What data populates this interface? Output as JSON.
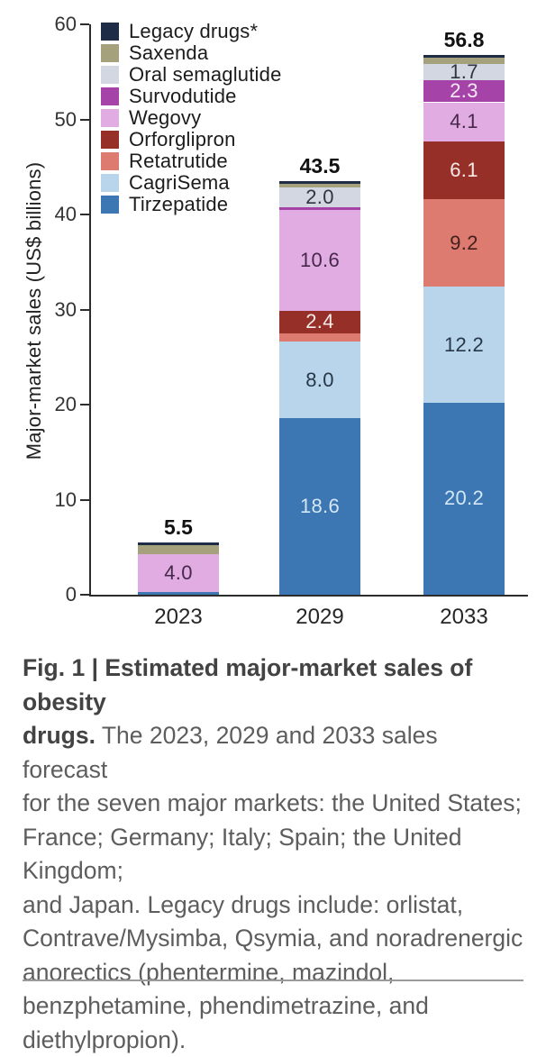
{
  "caption": {
    "line1_bold": "Fig. 1 | Estimated major-market sales of obesity",
    "line2_bold": "drugs.",
    "line2_rest": " The 2023, 2029 and 2033 sales forecast",
    "rest": "for the seven major markets: the United States;\nFrance; Germany; Italy; Spain; the United Kingdom;\nand Japan. Legacy drugs include: orlistat,\nContrave/Mysimba, Qsymia, and noradrenergic\nanorectics (phentermine, mazindol,\nbenzphetamine, phendimetrazine, and\ndiethylpropion).",
    "full_text": "Fig. 1 | Estimated major-market sales of obesity drugs. The 2023, 2029 and 2033 sales forecast for the seven major markets: the United States; France; Germany; Italy; Spain; the United Kingdom; and Japan. Legacy drugs include: orlistat, Contrave/Mysimba, Qsymia, and noradrenergic anorectics (phentermine, mazindol, benzphetamine, phendimetrazine, and diethylpropion)."
  },
  "chart_data": {
    "type": "bar",
    "stacked": true,
    "title": "",
    "xlabel": "",
    "ylabel": "Major-market sales (US$ billions)",
    "categories": [
      "2023",
      "2029",
      "2033"
    ],
    "totals": [
      "5.5",
      "43.5",
      "56.8"
    ],
    "ylim": [
      0,
      60
    ],
    "yticks": [
      0,
      10,
      20,
      30,
      40,
      50,
      60
    ],
    "grid": false,
    "legend_position": "top-left",
    "series": [
      {
        "name": "Legacy drugs*",
        "color": "#1f2c45",
        "values": [
          0.3,
          0.3,
          0.3
        ],
        "labels": [
          "",
          "",
          ""
        ],
        "label_color": "#333333"
      },
      {
        "name": "Saxenda",
        "color": "#a5a17c",
        "values": [
          0.9,
          0.4,
          0.7
        ],
        "labels": [
          "",
          "",
          ""
        ],
        "label_color": "#333333"
      },
      {
        "name": "Oral semaglutide",
        "color": "#d3d7e1",
        "values": [
          0,
          2.0,
          1.7
        ],
        "labels": [
          "",
          "2.0",
          "1.7"
        ],
        "label_color": "#33353e"
      },
      {
        "name": "Survodutide",
        "color": "#a643a9",
        "values": [
          0,
          0.3,
          2.3
        ],
        "labels": [
          "",
          "",
          "2.3"
        ],
        "label_color": "#f6ebf6"
      },
      {
        "name": "Wegovy",
        "color": "#e0ace2",
        "values": [
          4.0,
          10.6,
          4.1
        ],
        "labels": [
          "4.0",
          "10.6",
          "4.1"
        ],
        "label_color": "#47284b"
      },
      {
        "name": "Orforglipron",
        "color": "#962f28",
        "values": [
          0,
          2.4,
          6.1
        ],
        "labels": [
          "",
          "2.4",
          "6.1"
        ],
        "label_color": "#f7eae8"
      },
      {
        "name": "Retatrutide",
        "color": "#de7b70",
        "values": [
          0,
          0.9,
          9.2
        ],
        "labels": [
          "",
          "",
          "9.2"
        ],
        "label_color": "#43201d"
      },
      {
        "name": "CagriSema",
        "color": "#b8d5ec",
        "values": [
          0,
          8.0,
          12.2
        ],
        "labels": [
          "",
          "8.0",
          "12.2"
        ],
        "label_color": "#273747"
      },
      {
        "name": "Tirzepatide",
        "color": "#3c76b3",
        "values": [
          0.3,
          18.6,
          20.2
        ],
        "labels": [
          "",
          "18.6",
          "20.2"
        ],
        "label_color": "#d3e7f6"
      }
    ]
  }
}
